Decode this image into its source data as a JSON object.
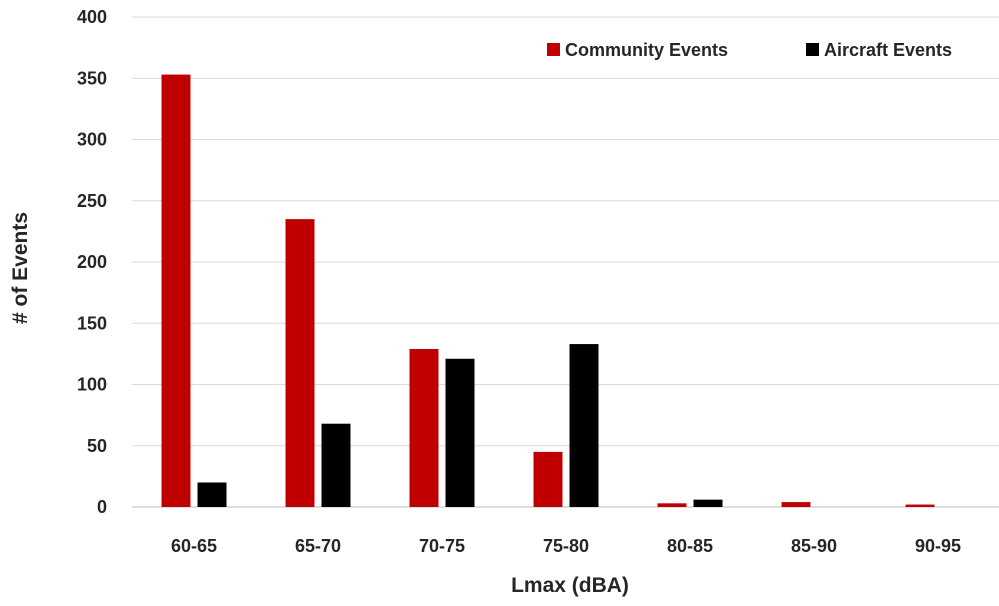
{
  "chart_data": {
    "type": "bar",
    "xlabel": "Lmax (dBA)",
    "ylabel": "# of Events",
    "ylim": [
      0,
      400
    ],
    "yticks": [
      0,
      50,
      100,
      150,
      200,
      250,
      300,
      350,
      400
    ],
    "grid": true,
    "legend_position": "top-right",
    "categories": [
      "60-65",
      "65-70",
      "70-75",
      "75-80",
      "80-85",
      "85-90",
      "90-95"
    ],
    "series": [
      {
        "name": "Community Events",
        "color": "#C00000",
        "values": [
          353,
          235,
          129,
          45,
          3,
          4,
          2
        ]
      },
      {
        "name": "Aircraft Events",
        "color": "#000000",
        "values": [
          20,
          68,
          121,
          133,
          6,
          0,
          0
        ]
      }
    ]
  }
}
